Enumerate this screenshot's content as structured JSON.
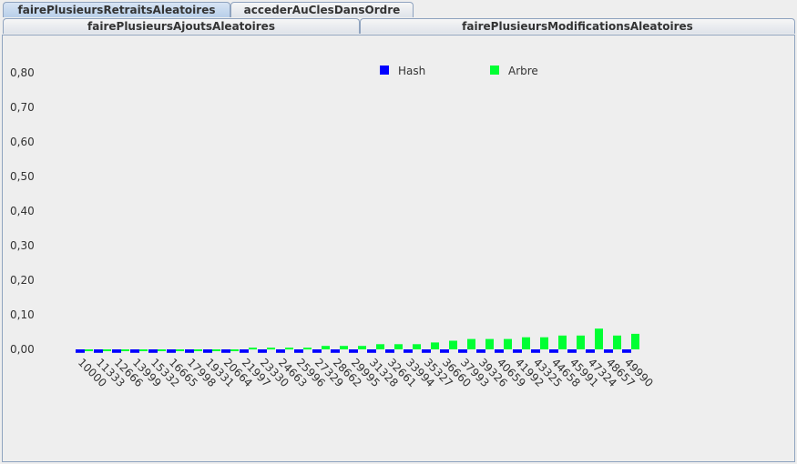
{
  "tabs_row1": [
    {
      "label": "fairePlusieursRetraitsAleatoires",
      "selected": true
    },
    {
      "label": "accederAuClesDansOrdre",
      "selected": false
    }
  ],
  "tabs_row2": [
    {
      "label": "fairePlusieursAjoutsAleatoires"
    },
    {
      "label": "fairePlusieursModificationsAleatoires"
    }
  ],
  "chart_data": {
    "type": "bar",
    "categories": [
      "10000",
      "11333",
      "12666",
      "13999",
      "15332",
      "16665",
      "17998",
      "19331",
      "20664",
      "21997",
      "23330",
      "24663",
      "25996",
      "27329",
      "28662",
      "29995",
      "31328",
      "32661",
      "33994",
      "35327",
      "36660",
      "37993",
      "39326",
      "40659",
      "41992",
      "43325",
      "44658",
      "45991",
      "47324",
      "48657",
      "49990"
    ],
    "series": [
      {
        "name": "Hash",
        "color": "#0000ff",
        "values": [
          -0.01,
          -0.01,
          -0.01,
          -0.01,
          -0.01,
          -0.01,
          -0.01,
          -0.01,
          -0.01,
          -0.01,
          -0.01,
          -0.01,
          -0.01,
          -0.01,
          -0.01,
          -0.01,
          -0.01,
          -0.01,
          -0.01,
          -0.01,
          -0.01,
          -0.01,
          -0.01,
          -0.01,
          -0.01,
          -0.01,
          -0.01,
          -0.01,
          -0.01,
          -0.01,
          -0.01
        ]
      },
      {
        "name": "Arbre",
        "color": "#00ff33",
        "values": [
          0.0,
          -0.005,
          -0.005,
          -0.005,
          -0.005,
          -0.005,
          0.0,
          0.0,
          0.0,
          0.005,
          0.005,
          0.005,
          0.005,
          0.01,
          0.01,
          0.01,
          0.015,
          0.015,
          0.015,
          0.02,
          0.025,
          0.03,
          0.03,
          0.03,
          0.035,
          0.035,
          0.04,
          0.04,
          0.06,
          0.04,
          0.045
        ]
      }
    ],
    "yticks": [
      "0,00",
      "0,10",
      "0,20",
      "0,30",
      "0,40",
      "0,50",
      "0,60",
      "0,70",
      "0,80"
    ],
    "ylim": [
      0,
      0.8
    ],
    "legend_position": "top-center",
    "grid": false,
    "title": "",
    "xlabel": "",
    "ylabel": ""
  }
}
